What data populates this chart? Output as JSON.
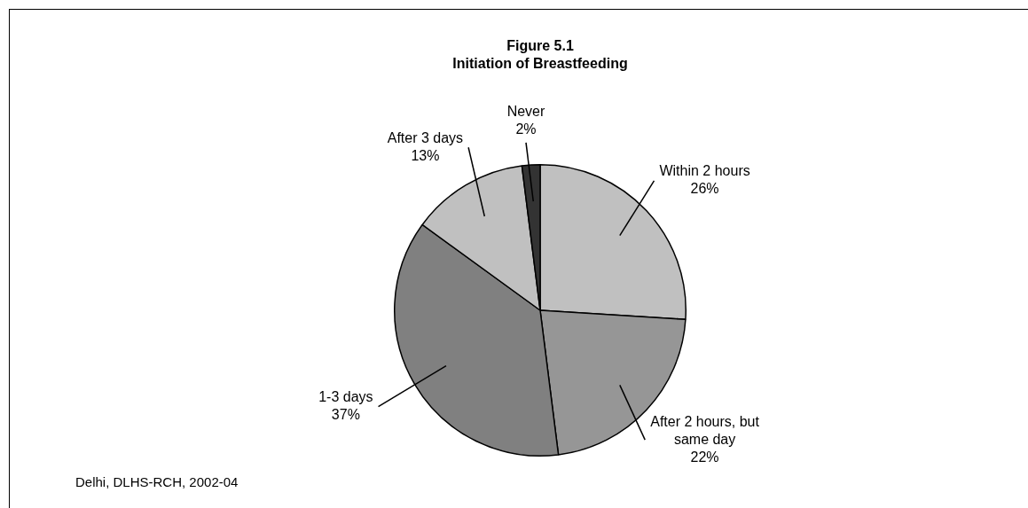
{
  "chart_data": {
    "type": "pie",
    "title": "Figure 5.1",
    "subtitle": "Initiation of Breastfeeding",
    "categories": [
      "Within 2 hours",
      "After 2 hours, but same day",
      "1-3 days",
      "After 3 days",
      "Never"
    ],
    "values": [
      26,
      22,
      37,
      13,
      2
    ],
    "colors": [
      "#c0c0c0",
      "#969696",
      "#808080",
      "#c0c0c0",
      "#333333"
    ],
    "value_labels": [
      "26%",
      "22%",
      "37%",
      "13%",
      "2%"
    ],
    "legend": false,
    "annotations": [
      "Delhi, DLHS-RCH, 2002-04"
    ]
  }
}
